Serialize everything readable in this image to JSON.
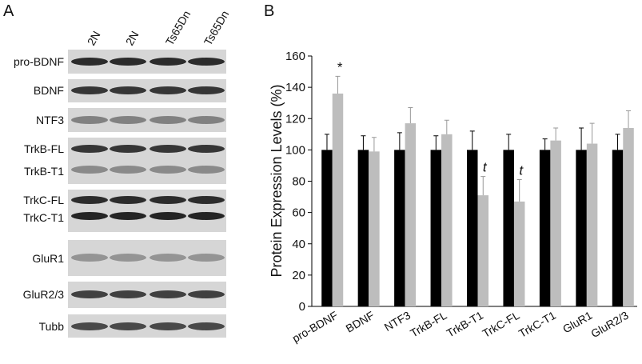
{
  "panel_a": {
    "label": "A",
    "lanes": [
      "2N",
      "2N",
      "Ts65Dn",
      "Ts65Dn"
    ],
    "blot_labels": [
      "pro-BDNF",
      "BDNF",
      "NTF3",
      "TrkB-FL",
      "TrkB-T1",
      "TrkC-FL",
      "TrkC-T1",
      "GluR1",
      "GluR2/3",
      "Tubb"
    ]
  },
  "chart_data": {
    "type": "bar",
    "panel_label": "B",
    "ylabel": "Protein Expression Levels (%)",
    "categories": [
      "pro-BDNF",
      "BDNF",
      "NTF3",
      "TrkB-FL",
      "TrkB-T1",
      "TrkC-FL",
      "TrkC-T1",
      "GluR1",
      "GluR2/3"
    ],
    "series": [
      {
        "color": "#000000",
        "values": [
          100,
          100,
          100,
          100,
          100,
          100,
          100,
          100,
          100
        ],
        "errors": [
          10,
          9,
          11,
          9,
          12,
          10,
          7,
          14,
          10
        ]
      },
      {
        "color": "#bdbdbd",
        "values": [
          136,
          99,
          117,
          110,
          71,
          67,
          106,
          104,
          114
        ],
        "errors": [
          11,
          9,
          10,
          9,
          12,
          14,
          8,
          13,
          11
        ]
      }
    ],
    "annotations": [
      {
        "text": "*",
        "category": "pro-BDNF"
      },
      {
        "text": "t",
        "category": "TrkB-T1"
      },
      {
        "text": "t",
        "category": "TrkC-FL"
      }
    ],
    "ylim": [
      0,
      160
    ],
    "yticks": [
      0,
      20,
      40,
      60,
      80,
      100,
      120,
      140,
      160
    ]
  }
}
